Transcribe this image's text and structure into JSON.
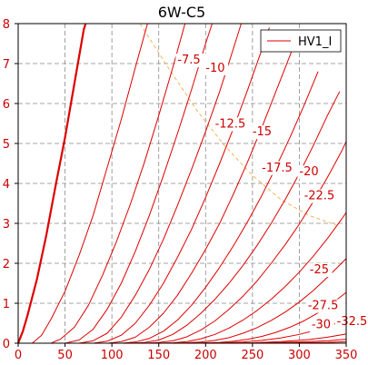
{
  "chart_data": {
    "type": "line",
    "title": "6W-C5",
    "xlabel": "",
    "ylabel": "",
    "xlim": [
      0,
      350
    ],
    "ylim": [
      0,
      8
    ],
    "x_ticks": [
      "0",
      "50",
      "100",
      "150",
      "200",
      "250",
      "300",
      "350"
    ],
    "y_ticks": [
      "0",
      "1",
      "2",
      "3",
      "4",
      "5",
      "6",
      "7",
      "8"
    ],
    "grid": true,
    "legend": {
      "position": "top-right",
      "entries": [
        "HV1_I"
      ]
    },
    "colors": {
      "curve": "#dd0000",
      "tick_label": "#cc0000",
      "grid": "#888888",
      "load_line": "#f5b35a",
      "frame": "#000000"
    },
    "series": [
      {
        "name": "HV1_I",
        "label": "",
        "bold": true,
        "points": [
          [
            0,
            0
          ],
          [
            5,
            0.3
          ],
          [
            10,
            0.7
          ],
          [
            20,
            1.6
          ],
          [
            30,
            2.7
          ],
          [
            40,
            3.95
          ],
          [
            50,
            5.15
          ],
          [
            60,
            6.5
          ],
          [
            70,
            7.85
          ],
          [
            72,
            8.0
          ]
        ]
      },
      {
        "label": "",
        "points": [
          [
            15,
            0
          ],
          [
            25,
            0.2
          ],
          [
            35,
            0.6
          ],
          [
            50,
            1.3
          ],
          [
            65,
            2.2
          ],
          [
            80,
            3.2
          ],
          [
            95,
            4.4
          ],
          [
            110,
            5.6
          ],
          [
            125,
            6.9
          ],
          [
            138,
            8.0
          ]
        ]
      },
      {
        "label": "",
        "points": [
          [
            35,
            0
          ],
          [
            45,
            0.1
          ],
          [
            60,
            0.4
          ],
          [
            75,
            0.95
          ],
          [
            90,
            1.7
          ],
          [
            105,
            2.55
          ],
          [
            120,
            3.5
          ],
          [
            135,
            4.55
          ],
          [
            150,
            5.7
          ],
          [
            165,
            6.9
          ],
          [
            178,
            8.0
          ]
        ]
      },
      {
        "label": "-7.5",
        "label_at": [
          170,
          7.0
        ],
        "points": [
          [
            50,
            0
          ],
          [
            65,
            0.08
          ],
          [
            80,
            0.35
          ],
          [
            95,
            0.85
          ],
          [
            110,
            1.5
          ],
          [
            125,
            2.3
          ],
          [
            140,
            3.2
          ],
          [
            155,
            4.2
          ],
          [
            170,
            5.25
          ],
          [
            185,
            6.35
          ],
          [
            200,
            7.5
          ],
          [
            207,
            8.0
          ]
        ]
      },
      {
        "label": "-10",
        "label_at": [
          200,
          6.8
        ],
        "points": [
          [
            65,
            0
          ],
          [
            80,
            0.06
          ],
          [
            95,
            0.25
          ],
          [
            110,
            0.65
          ],
          [
            125,
            1.2
          ],
          [
            140,
            1.85
          ],
          [
            155,
            2.6
          ],
          [
            170,
            3.45
          ],
          [
            185,
            4.35
          ],
          [
            200,
            5.3
          ],
          [
            215,
            6.3
          ],
          [
            230,
            7.4
          ],
          [
            238,
            8.0
          ]
        ]
      },
      {
        "label": "-12.5",
        "label_at": [
          210,
          5.4
        ],
        "points": [
          [
            80,
            0
          ],
          [
            95,
            0.05
          ],
          [
            110,
            0.2
          ],
          [
            125,
            0.5
          ],
          [
            140,
            0.95
          ],
          [
            155,
            1.5
          ],
          [
            170,
            2.15
          ],
          [
            185,
            2.85
          ],
          [
            200,
            3.65
          ],
          [
            215,
            4.5
          ],
          [
            230,
            5.4
          ],
          [
            245,
            6.35
          ],
          [
            260,
            7.35
          ],
          [
            268,
            7.9
          ]
        ]
      },
      {
        "label": "-15",
        "label_at": [
          250,
          5.2
        ],
        "points": [
          [
            95,
            0
          ],
          [
            110,
            0.04
          ],
          [
            125,
            0.15
          ],
          [
            140,
            0.4
          ],
          [
            155,
            0.75
          ],
          [
            170,
            1.2
          ],
          [
            185,
            1.75
          ],
          [
            200,
            2.35
          ],
          [
            215,
            3.0
          ],
          [
            230,
            3.75
          ],
          [
            245,
            4.55
          ],
          [
            260,
            5.4
          ],
          [
            275,
            6.3
          ],
          [
            290,
            7.2
          ],
          [
            298,
            7.7
          ]
        ]
      },
      {
        "label": "-17.5",
        "label_at": [
          260,
          4.3
        ],
        "points": [
          [
            110,
            0
          ],
          [
            125,
            0.03
          ],
          [
            140,
            0.12
          ],
          [
            155,
            0.3
          ],
          [
            170,
            0.58
          ],
          [
            185,
            0.95
          ],
          [
            200,
            1.4
          ],
          [
            215,
            1.9
          ],
          [
            230,
            2.45
          ],
          [
            245,
            3.05
          ],
          [
            260,
            3.7
          ],
          [
            275,
            4.4
          ],
          [
            290,
            5.15
          ],
          [
            305,
            5.95
          ],
          [
            320,
            6.8
          ]
        ]
      },
      {
        "label": "-20",
        "label_at": [
          300,
          4.2
        ],
        "points": [
          [
            120,
            0
          ],
          [
            135,
            0.02
          ],
          [
            150,
            0.08
          ],
          [
            165,
            0.22
          ],
          [
            180,
            0.45
          ],
          [
            195,
            0.75
          ],
          [
            210,
            1.1
          ],
          [
            225,
            1.5
          ],
          [
            240,
            1.95
          ],
          [
            255,
            2.45
          ],
          [
            270,
            3.0
          ],
          [
            285,
            3.6
          ],
          [
            300,
            4.25
          ],
          [
            315,
            4.95
          ],
          [
            330,
            5.7
          ],
          [
            343,
            6.3
          ]
        ]
      },
      {
        "label": "-22.5",
        "label_at": [
          305,
          3.6
        ],
        "points": [
          [
            135,
            0
          ],
          [
            150,
            0.02
          ],
          [
            165,
            0.06
          ],
          [
            180,
            0.16
          ],
          [
            195,
            0.33
          ],
          [
            210,
            0.56
          ],
          [
            225,
            0.85
          ],
          [
            240,
            1.18
          ],
          [
            255,
            1.56
          ],
          [
            270,
            2.0
          ],
          [
            285,
            2.47
          ],
          [
            300,
            2.98
          ],
          [
            315,
            3.55
          ],
          [
            330,
            4.15
          ],
          [
            345,
            4.8
          ],
          [
            350,
            5.05
          ]
        ]
      },
      {
        "label": "-25",
        "label_at": [
          311,
          1.75
        ],
        "points": [
          [
            150,
            0
          ],
          [
            165,
            0.01
          ],
          [
            180,
            0.04
          ],
          [
            195,
            0.11
          ],
          [
            210,
            0.22
          ],
          [
            225,
            0.38
          ],
          [
            240,
            0.58
          ],
          [
            255,
            0.82
          ],
          [
            270,
            1.1
          ],
          [
            285,
            1.42
          ],
          [
            300,
            1.78
          ],
          [
            315,
            2.18
          ],
          [
            330,
            2.62
          ],
          [
            345,
            3.1
          ],
          [
            350,
            3.27
          ]
        ]
      },
      {
        "label": "-27.5",
        "label_at": [
          309,
          0.85
        ],
        "points": [
          [
            165,
            0
          ],
          [
            180,
            0.01
          ],
          [
            195,
            0.03
          ],
          [
            210,
            0.07
          ],
          [
            225,
            0.14
          ],
          [
            240,
            0.25
          ],
          [
            255,
            0.39
          ],
          [
            270,
            0.57
          ],
          [
            285,
            0.78
          ],
          [
            300,
            1.03
          ],
          [
            315,
            1.32
          ],
          [
            330,
            1.65
          ],
          [
            345,
            2.0
          ],
          [
            350,
            2.12
          ]
        ]
      },
      {
        "label": "-30",
        "label_at": [
          313,
          0.37
        ],
        "points": [
          [
            185,
            0
          ],
          [
            200,
            0.01
          ],
          [
            215,
            0.02
          ],
          [
            230,
            0.05
          ],
          [
            245,
            0.1
          ],
          [
            260,
            0.17
          ],
          [
            275,
            0.27
          ],
          [
            290,
            0.4
          ],
          [
            305,
            0.56
          ],
          [
            320,
            0.76
          ],
          [
            335,
            1.0
          ],
          [
            350,
            1.27
          ]
        ]
      },
      {
        "label": "-32.5",
        "label_at": [
          340,
          0.45
        ],
        "points": [
          [
            200,
            0
          ],
          [
            220,
            0.01
          ],
          [
            240,
            0.03
          ],
          [
            260,
            0.07
          ],
          [
            280,
            0.13
          ],
          [
            300,
            0.22
          ],
          [
            320,
            0.34
          ],
          [
            335,
            0.46
          ],
          [
            350,
            0.6
          ]
        ]
      },
      {
        "label": "",
        "points": [
          [
            220,
            0
          ],
          [
            250,
            0.01
          ],
          [
            280,
            0.04
          ],
          [
            310,
            0.09
          ],
          [
            330,
            0.15
          ],
          [
            350,
            0.23
          ]
        ]
      },
      {
        "label": "",
        "points": [
          [
            240,
            0
          ],
          [
            270,
            0.01
          ],
          [
            300,
            0.03
          ],
          [
            330,
            0.06
          ],
          [
            350,
            0.1
          ]
        ]
      },
      {
        "label": "",
        "points": [
          [
            260,
            0
          ],
          [
            300,
            0.01
          ],
          [
            330,
            0.02
          ],
          [
            350,
            0.04
          ]
        ]
      }
    ],
    "load_line": {
      "points": [
        [
          130,
          8.0
        ],
        [
          160,
          6.9
        ],
        [
          190,
          5.85
        ],
        [
          220,
          4.95
        ],
        [
          250,
          4.2
        ],
        [
          280,
          3.6
        ],
        [
          310,
          3.2
        ],
        [
          340,
          2.95
        ]
      ]
    }
  }
}
